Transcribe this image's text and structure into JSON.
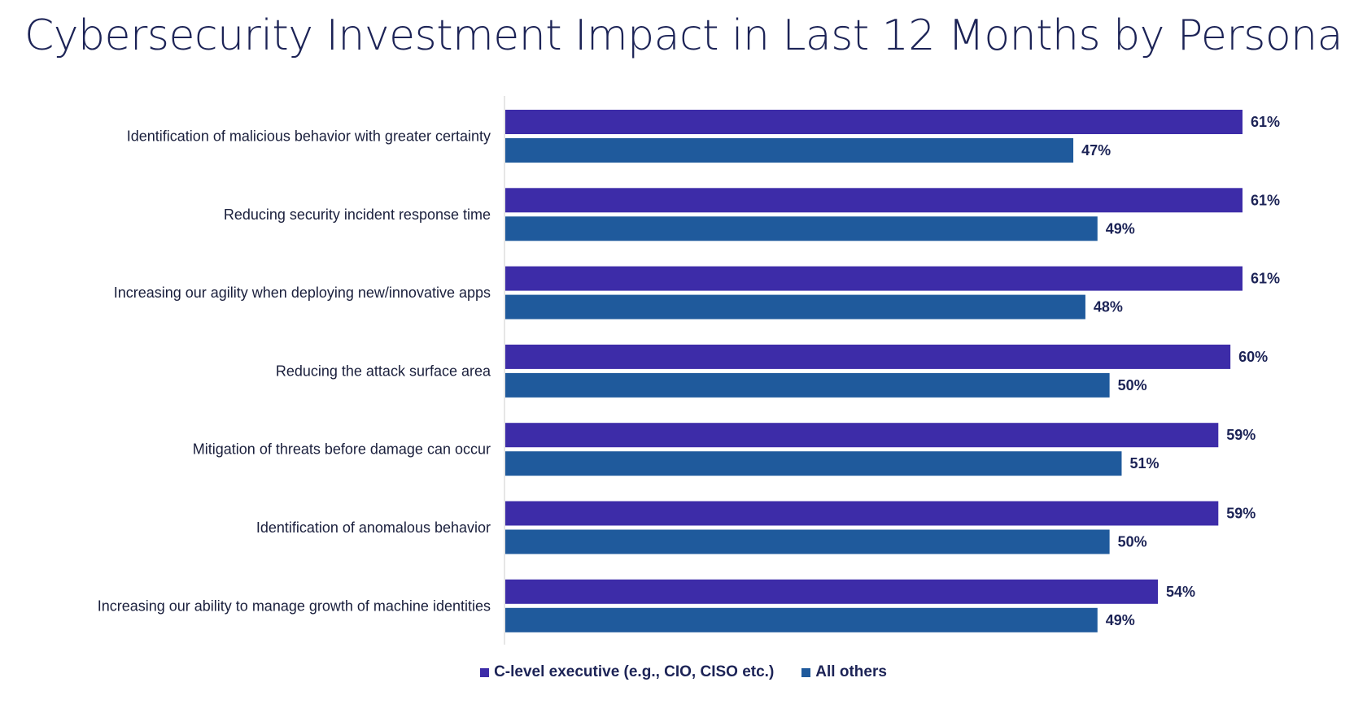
{
  "colors": {
    "c_level": "#3d2ca8",
    "all_others": "#1f5a9c",
    "axis": "#cccccc"
  },
  "chart_data": {
    "type": "bar",
    "orientation": "horizontal",
    "title": "Cybersecurity Investment Impact in Last 12 Months by Persona",
    "categories": [
      "Identification of malicious behavior with greater certainty",
      "Reducing security incident response time",
      "Increasing our agility when deploying new/innovative apps",
      "Reducing the attack surface area",
      "Mitigation of threats before damage can occur",
      "Identification of anomalous behavior",
      "Increasing our ability to manage growth of machine identities"
    ],
    "series": [
      {
        "name": "C-level executive (e.g., CIO, CISO etc.)",
        "values": [
          61,
          61,
          61,
          60,
          59,
          59,
          54
        ],
        "labels": [
          "61%",
          "61%",
          "61%",
          "60%",
          "59%",
          "59%",
          "54%"
        ]
      },
      {
        "name": "All others",
        "values": [
          47,
          49,
          48,
          50,
          51,
          50,
          49
        ],
        "labels": [
          "47%",
          "49%",
          "48%",
          "50%",
          "51%",
          "50%",
          "49%"
        ]
      }
    ],
    "xlim": [
      0,
      61
    ],
    "legend_position": "bottom",
    "grid": false
  }
}
